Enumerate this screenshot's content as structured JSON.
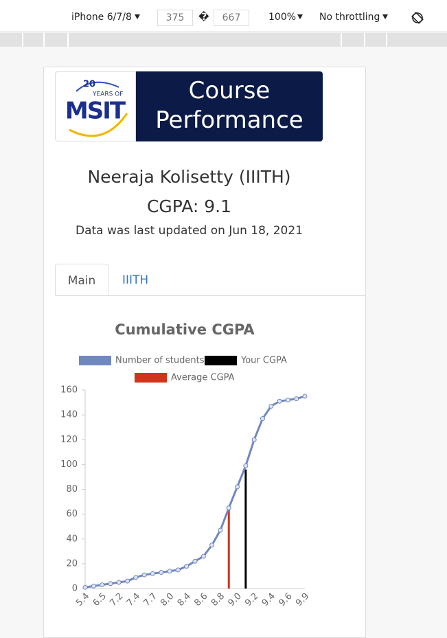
{
  "toolbar": {
    "device": "iPhone 6/7/8",
    "width": "375",
    "separator": "�",
    "height": "667",
    "zoom": "100%",
    "throttling": "No throttling"
  },
  "header": {
    "logo": {
      "number": "20",
      "caption": "YEARS OF",
      "name": "MSIT"
    },
    "title": "Course Performance"
  },
  "student": {
    "name": "Neeraja Kolisetty (IIITH)",
    "cgpa": "CGPA: 9.1",
    "updated": "Data was last updated on Jun 18, 2021"
  },
  "tabs": [
    "Main",
    "IIITH"
  ],
  "chart_data": {
    "type": "line",
    "title": "Cumulative CGPA",
    "categories": [
      "5.4",
      null,
      "6.5",
      null,
      "7.2",
      null,
      "7.4",
      null,
      "7.7",
      null,
      "8.0",
      null,
      "8.4",
      null,
      "8.6",
      null,
      "8.8",
      null,
      "9.0",
      null,
      "9.2",
      null,
      "9.4",
      null,
      "9.6",
      null,
      "9.9"
    ],
    "series": [
      {
        "name": "Number of students",
        "type": "line",
        "color": "#7088bf",
        "values": [
          1,
          2,
          3,
          4,
          5,
          6,
          9,
          11,
          12,
          13,
          14,
          15,
          18,
          22,
          26,
          35,
          47,
          65,
          82,
          99,
          120,
          137,
          147,
          151,
          152,
          153,
          155
        ]
      },
      {
        "name": "Your CGPA",
        "type": "bar",
        "color": "#000000",
        "values": [
          null,
          null,
          null,
          null,
          null,
          null,
          null,
          null,
          null,
          null,
          null,
          null,
          null,
          null,
          null,
          null,
          null,
          null,
          null,
          96,
          null,
          null,
          null,
          null,
          null,
          null,
          null
        ]
      },
      {
        "name": "Average CGPA",
        "type": "bar",
        "color": "#d0341c",
        "values": [
          null,
          null,
          null,
          null,
          null,
          null,
          null,
          null,
          null,
          null,
          null,
          null,
          null,
          null,
          null,
          null,
          null,
          65,
          null,
          null,
          null,
          null,
          null,
          null,
          null,
          null,
          null
        ]
      }
    ],
    "ylim": [
      0,
      160
    ],
    "yticks": [
      0,
      20,
      40,
      60,
      80,
      100,
      120,
      140,
      160
    ]
  }
}
